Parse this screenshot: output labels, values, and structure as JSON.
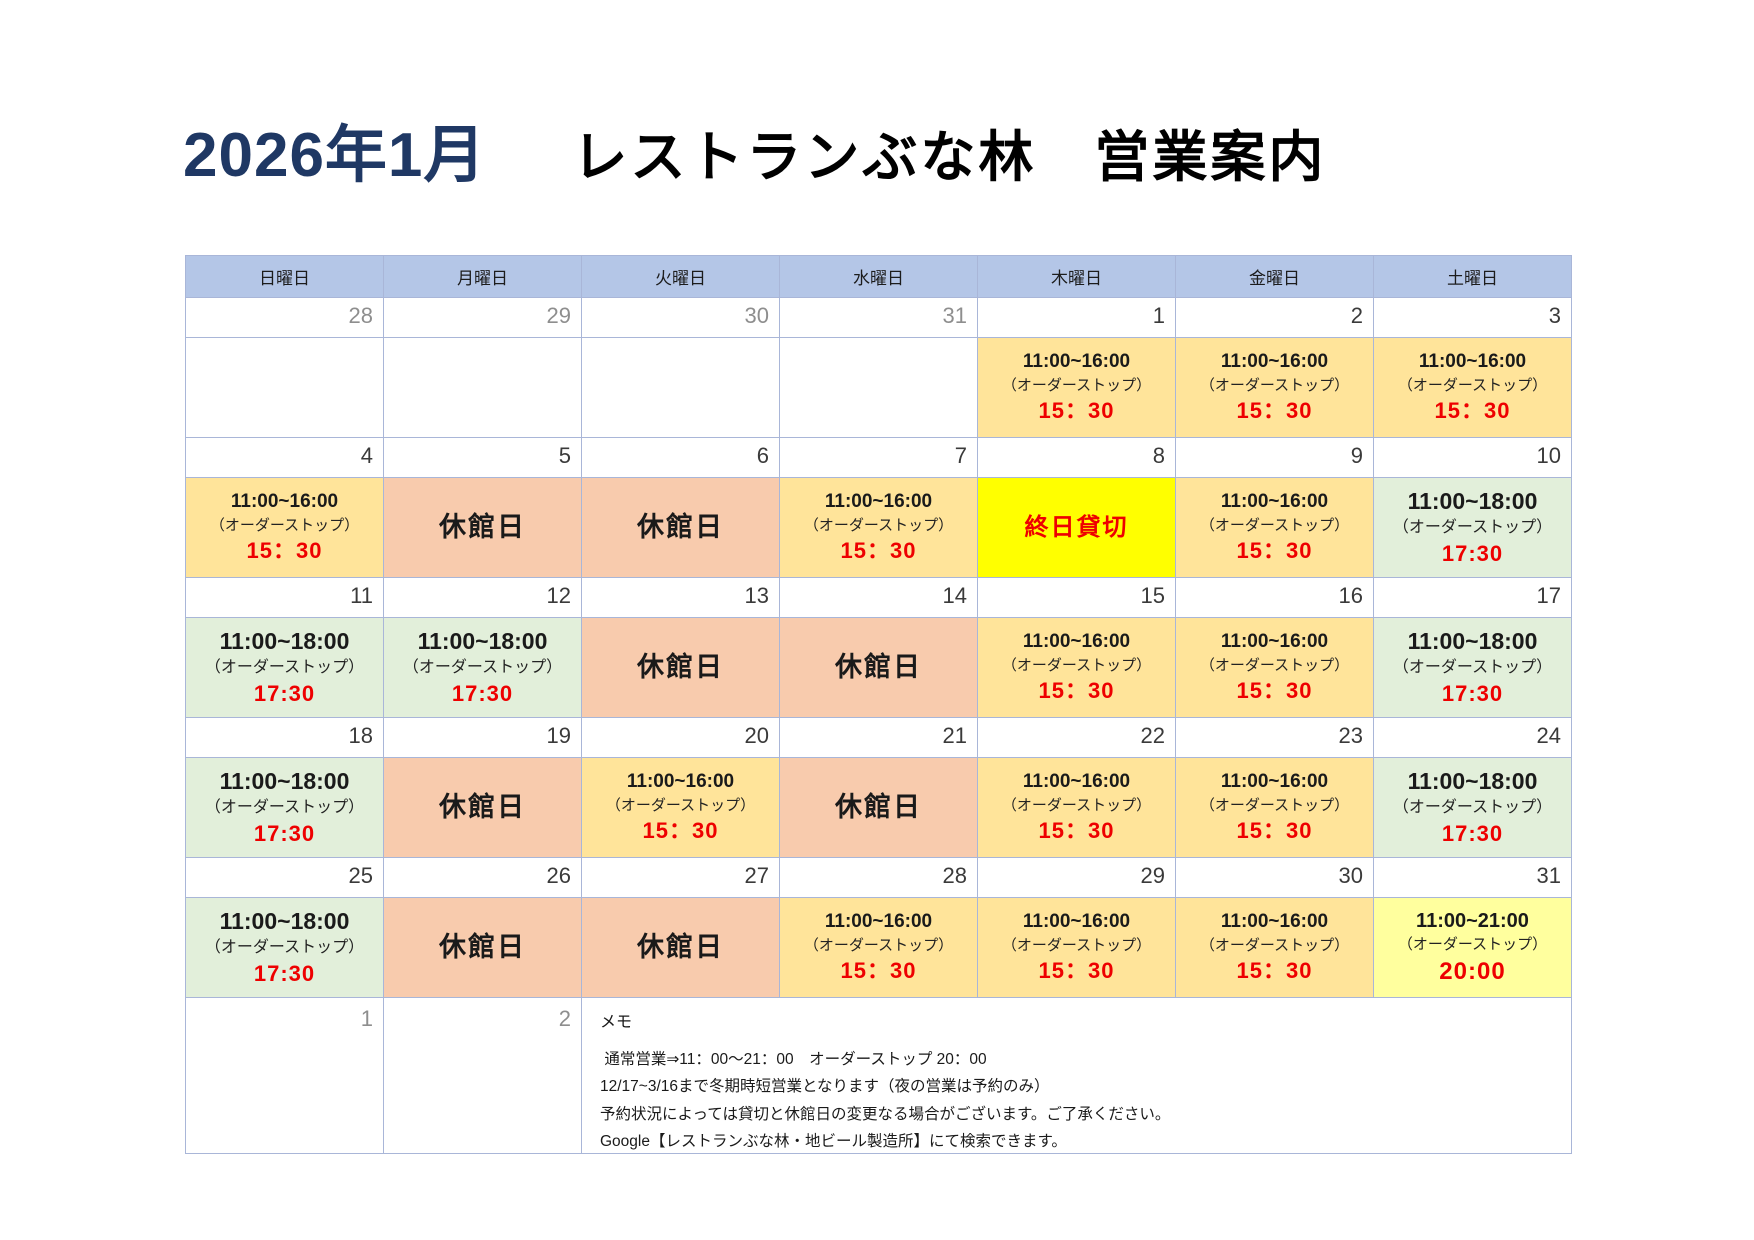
{
  "title": {
    "month": "2026年1月",
    "main": "レストランぶな林　営業案内"
  },
  "weekday_headers": [
    "日曜日",
    "月曜日",
    "火曜日",
    "水曜日",
    "木曜日",
    "金曜日",
    "土曜日"
  ],
  "colors": {
    "navy": "#1f3864",
    "border": "#a9b6d8",
    "header_bg": "#b4c6e7",
    "bg_short": "#ffe49a",
    "bg_closed": "#f8cbad",
    "bg_long": "#e2efda",
    "bg_charter": "#ffff00",
    "bg_late": "#ffff9e",
    "red": "#ee0000",
    "date": "#3a3a3a",
    "muted": "#8e8e8e"
  },
  "weeks": [
    {
      "dates": [
        {
          "day": "28",
          "muted": true
        },
        {
          "day": "29",
          "muted": true
        },
        {
          "day": "30",
          "muted": true
        },
        {
          "day": "31",
          "muted": true
        },
        {
          "day": "1"
        },
        {
          "day": "2"
        },
        {
          "day": "3"
        }
      ],
      "cells": [
        {
          "type": "empty"
        },
        {
          "type": "empty"
        },
        {
          "type": "empty"
        },
        {
          "type": "empty"
        },
        {
          "type": "short",
          "time": "11:00~16:00",
          "stop": "（オーダーストップ）",
          "last": "15：30"
        },
        {
          "type": "short",
          "time": "11:00~16:00",
          "stop": "（オーダーストップ）",
          "last": "15：30"
        },
        {
          "type": "short",
          "time": "11:00~16:00",
          "stop": "（オーダーストップ）",
          "last": "15：30"
        }
      ]
    },
    {
      "dates": [
        {
          "day": "4"
        },
        {
          "day": "5"
        },
        {
          "day": "6"
        },
        {
          "day": "7"
        },
        {
          "day": "8"
        },
        {
          "day": "9"
        },
        {
          "day": "10"
        }
      ],
      "cells": [
        {
          "type": "short",
          "time": "11:00~16:00",
          "stop": "（オーダーストップ）",
          "last": "15：30"
        },
        {
          "type": "closed",
          "label": "休館日"
        },
        {
          "type": "closed",
          "label": "休館日"
        },
        {
          "type": "short",
          "time": "11:00~16:00",
          "stop": "（オーダーストップ）",
          "last": "15：30"
        },
        {
          "type": "charter",
          "label": "終日貸切"
        },
        {
          "type": "short",
          "time": "11:00~16:00",
          "stop": "（オーダーストップ）",
          "last": "15：30"
        },
        {
          "type": "long",
          "time": "11:00~18:00",
          "stop": "（オーダーストップ）",
          "last": "17:30"
        }
      ]
    },
    {
      "dates": [
        {
          "day": "11"
        },
        {
          "day": "12"
        },
        {
          "day": "13"
        },
        {
          "day": "14"
        },
        {
          "day": "15"
        },
        {
          "day": "16"
        },
        {
          "day": "17"
        }
      ],
      "cells": [
        {
          "type": "long",
          "time": "11:00~18:00",
          "stop": "（オーダーストップ）",
          "last": "17:30"
        },
        {
          "type": "long",
          "time": "11:00~18:00",
          "stop": "（オーダーストップ）",
          "last": "17:30"
        },
        {
          "type": "closed",
          "label": "休館日"
        },
        {
          "type": "closed",
          "label": "休館日"
        },
        {
          "type": "short",
          "time": "11:00~16:00",
          "stop": "（オーダーストップ）",
          "last": "15：30"
        },
        {
          "type": "short",
          "time": "11:00~16:00",
          "stop": "（オーダーストップ）",
          "last": "15：30"
        },
        {
          "type": "long",
          "time": "11:00~18:00",
          "stop": "（オーダーストップ）",
          "last": "17:30"
        }
      ]
    },
    {
      "dates": [
        {
          "day": "18"
        },
        {
          "day": "19"
        },
        {
          "day": "20"
        },
        {
          "day": "21"
        },
        {
          "day": "22"
        },
        {
          "day": "23"
        },
        {
          "day": "24"
        }
      ],
      "cells": [
        {
          "type": "long",
          "time": "11:00~18:00",
          "stop": "（オーダーストップ）",
          "last": "17:30"
        },
        {
          "type": "closed",
          "label": "休館日"
        },
        {
          "type": "short",
          "time": "11:00~16:00",
          "stop": "（オーダーストップ）",
          "last": "15：30"
        },
        {
          "type": "closed",
          "label": "休館日"
        },
        {
          "type": "short",
          "time": "11:00~16:00",
          "stop": "（オーダーストップ）",
          "last": "15：30"
        },
        {
          "type": "short",
          "time": "11:00~16:00",
          "stop": "（オーダーストップ）",
          "last": "15：30"
        },
        {
          "type": "long",
          "time": "11:00~18:00",
          "stop": "（オーダーストップ）",
          "last": "17:30"
        }
      ]
    },
    {
      "dates": [
        {
          "day": "25"
        },
        {
          "day": "26"
        },
        {
          "day": "27"
        },
        {
          "day": "28"
        },
        {
          "day": "29"
        },
        {
          "day": "30"
        },
        {
          "day": "31"
        }
      ],
      "cells": [
        {
          "type": "long",
          "time": "11:00~18:00",
          "stop": "（オーダーストップ）",
          "last": "17:30"
        },
        {
          "type": "closed",
          "label": "休館日"
        },
        {
          "type": "closed",
          "label": "休館日"
        },
        {
          "type": "short",
          "time": "11:00~16:00",
          "stop": "（オーダーストップ）",
          "last": "15：30"
        },
        {
          "type": "short",
          "time": "11:00~16:00",
          "stop": "（オーダーストップ）",
          "last": "15：30"
        },
        {
          "type": "short",
          "time": "11:00~16:00",
          "stop": "（オーダーストップ）",
          "last": "15：30"
        },
        {
          "type": "late",
          "time": "11:00~21:00",
          "stop": "（オーダーストップ）",
          "last": "20:00"
        }
      ]
    }
  ],
  "footer": {
    "dates": [
      {
        "day": "1",
        "muted": true
      },
      {
        "day": "2",
        "muted": true
      }
    ],
    "memo_label": "メモ",
    "memo_lines": [
      " 通常営業⇒11：00～21：00　オーダーストップ 20：00",
      "12/17~3/16まで冬期時短営業となります（夜の営業は予約のみ）",
      "予約状況によっては貸切と休館日の変更なる場合がございます。ご了承ください。",
      "Google【レストランぶな林・地ビール製造所】にて検索できます。"
    ]
  }
}
